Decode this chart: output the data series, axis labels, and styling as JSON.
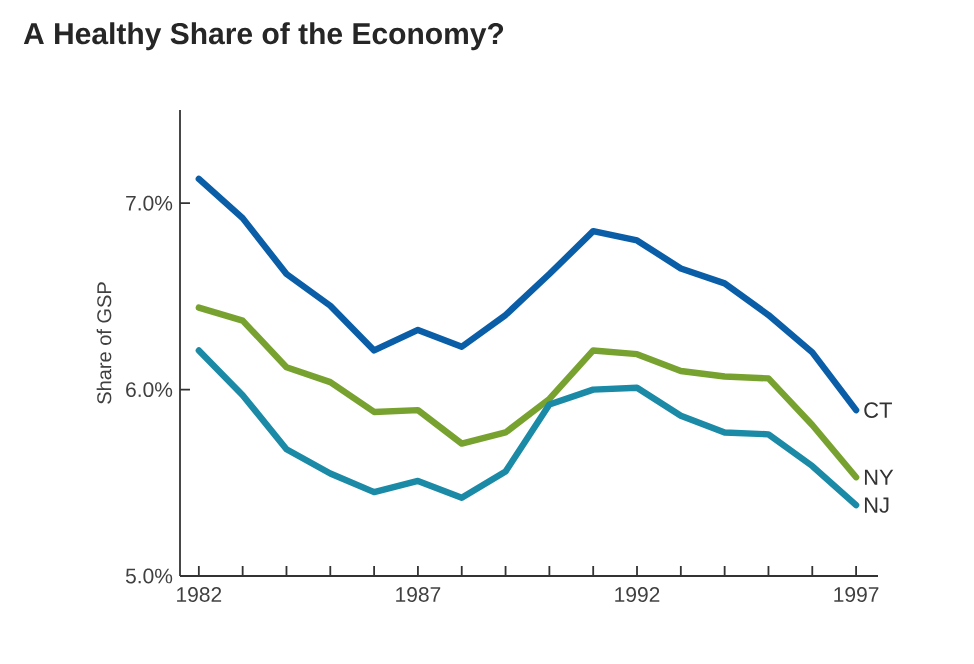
{
  "chart_data": {
    "type": "line",
    "title": "A Healthy Share of the Economy?",
    "ylabel": "Share of GSP",
    "x": [
      1982,
      1983,
      1984,
      1985,
      1986,
      1987,
      1988,
      1989,
      1990,
      1991,
      1992,
      1993,
      1994,
      1995,
      1996,
      1997
    ],
    "series": [
      {
        "name": "CT",
        "color": "#0a5ea8",
        "values": [
          7.13,
          6.92,
          6.62,
          6.45,
          6.21,
          6.32,
          6.23,
          6.4,
          6.62,
          6.85,
          6.8,
          6.65,
          6.57,
          6.4,
          6.2,
          5.89
        ]
      },
      {
        "name": "NY",
        "color": "#78a22f",
        "values": [
          6.44,
          6.37,
          6.12,
          6.04,
          5.88,
          5.89,
          5.71,
          5.77,
          5.95,
          6.21,
          6.19,
          6.1,
          6.07,
          6.06,
          5.81,
          5.53
        ]
      },
      {
        "name": "NJ",
        "color": "#1a8aa6",
        "values": [
          6.21,
          5.97,
          5.68,
          5.55,
          5.45,
          5.51,
          5.42,
          5.56,
          5.92,
          6.0,
          6.01,
          5.86,
          5.77,
          5.76,
          5.59,
          5.38
        ]
      }
    ],
    "xlim": [
      1981.57,
      1997.5
    ],
    "ylim": [
      5.0,
      7.5
    ],
    "xticks": [
      1982,
      {
        "value": 1983,
        "label": null
      },
      {
        "value": 1984,
        "label": null
      },
      {
        "value": 1985,
        "label": null
      },
      {
        "value": 1986,
        "label": null
      },
      1987,
      {
        "value": 1988,
        "label": null
      },
      {
        "value": 1989,
        "label": null
      },
      {
        "value": 1990,
        "label": null
      },
      {
        "value": 1991,
        "label": null
      },
      1992,
      {
        "value": 1993,
        "label": null
      },
      {
        "value": 1994,
        "label": null
      },
      {
        "value": 1995,
        "label": null
      },
      {
        "value": 1996,
        "label": null
      },
      1997
    ],
    "yticks": [
      {
        "value": 5.0,
        "label": "5.0%"
      },
      {
        "value": 6.0,
        "label": "6.0%"
      },
      {
        "value": 7.0,
        "label": "7.0%"
      }
    ],
    "grid": false,
    "legend": false,
    "line_style": "solid",
    "marker": "none"
  }
}
